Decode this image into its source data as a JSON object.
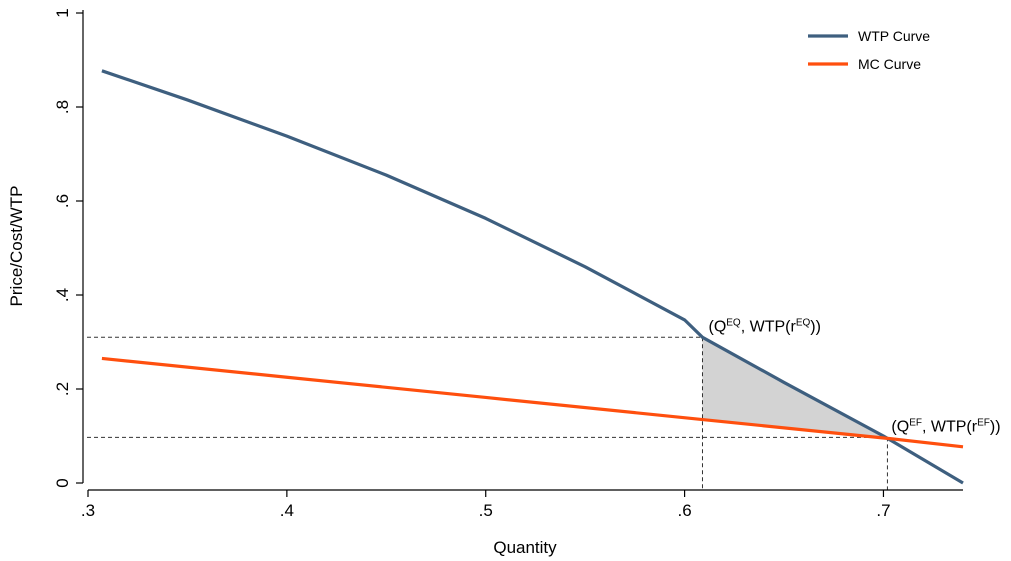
{
  "chart_data": {
    "type": "line",
    "xlabel": "Quantity",
    "ylabel": "Price/Cost/WTP",
    "xlim": [
      0.3,
      0.74
    ],
    "ylim": [
      0,
      1
    ],
    "x_ticks": [
      {
        "value": 0.3,
        "label": ".3"
      },
      {
        "value": 0.4,
        "label": ".4"
      },
      {
        "value": 0.5,
        "label": ".5"
      },
      {
        "value": 0.6,
        "label": ".6"
      },
      {
        "value": 0.7,
        "label": ".7"
      }
    ],
    "y_ticks": [
      {
        "value": 0,
        "label": "0"
      },
      {
        "value": 0.2,
        "label": ".2"
      },
      {
        "value": 0.4,
        "label": ".4"
      },
      {
        "value": 0.6,
        "label": ".6"
      },
      {
        "value": 0.8,
        "label": ".8"
      },
      {
        "value": 1,
        "label": "1"
      }
    ],
    "grid": false,
    "legend_position": "top-right",
    "series": [
      {
        "name": "WTP Curve",
        "color": "#3e5f7f",
        "x": [
          0.307,
          0.35,
          0.4,
          0.45,
          0.5,
          0.55,
          0.6,
          0.609,
          0.65,
          0.7,
          0.74
        ],
        "y": [
          0.877,
          0.815,
          0.738,
          0.655,
          0.563,
          0.46,
          0.347,
          0.31,
          0.214,
          0.1,
          0.0
        ]
      },
      {
        "name": "MC Curve",
        "color": "#ff4f0e",
        "x": [
          0.307,
          0.4,
          0.5,
          0.609,
          0.702,
          0.74
        ],
        "y": [
          0.265,
          0.225,
          0.182,
          0.135,
          0.095,
          0.077
        ]
      }
    ],
    "shaded_region": {
      "color": "#d3d3d3",
      "x_from": 0.609,
      "x_to": 0.702
    },
    "reference_points": [
      {
        "x": 0.609,
        "y": 0.31,
        "label_base": "(Q",
        "label_sup1": "EQ",
        "label_mid": ", WTP(r",
        "label_sup2": "EQ",
        "label_end": "))"
      },
      {
        "x": 0.702,
        "y": 0.097,
        "label_base": "(Q",
        "label_sup1": "EF",
        "label_mid": ", WTP(r",
        "label_sup2": "EF",
        "label_end": "))"
      }
    ]
  }
}
